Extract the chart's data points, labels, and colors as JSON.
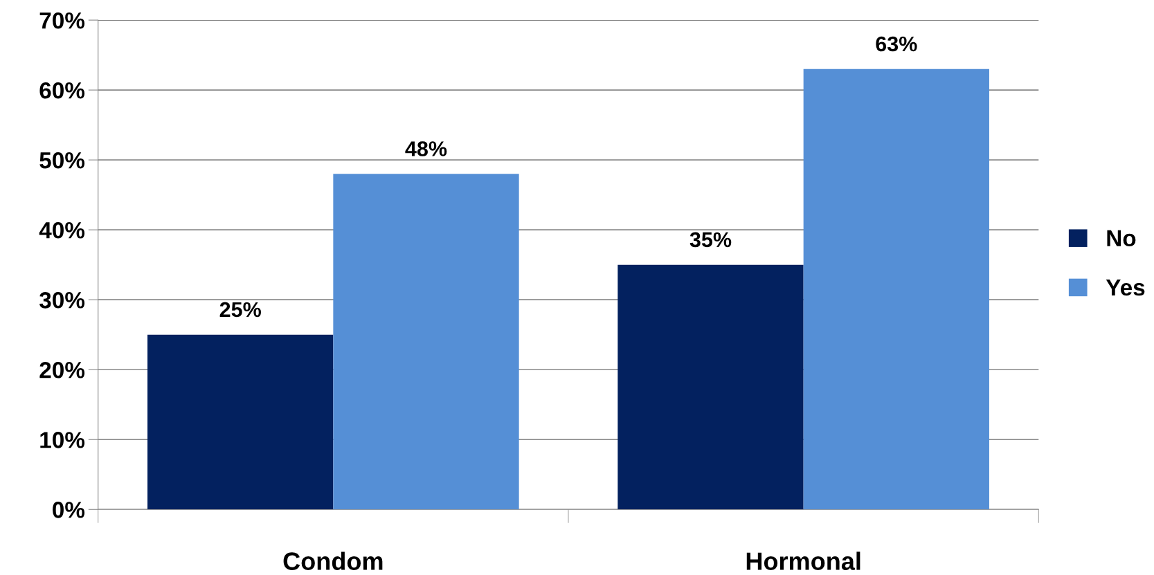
{
  "chart_data": {
    "type": "bar",
    "categories": [
      "Condom",
      "Hormonal"
    ],
    "series": [
      {
        "name": "No",
        "color": "#03215f",
        "values": [
          25,
          35
        ],
        "value_labels": [
          "25%",
          "35%"
        ]
      },
      {
        "name": "Yes",
        "color": "#558fd6",
        "values": [
          48,
          63
        ],
        "value_labels": [
          "48%",
          "63%"
        ]
      }
    ],
    "ylim": [
      0,
      70
    ],
    "yticks": [
      {
        "value": 0,
        "label": "0%"
      },
      {
        "value": 10,
        "label": "10%"
      },
      {
        "value": 20,
        "label": "20%"
      },
      {
        "value": 30,
        "label": "30%"
      },
      {
        "value": 40,
        "label": "40%"
      },
      {
        "value": 50,
        "label": "50%"
      },
      {
        "value": 60,
        "label": "60%"
      },
      {
        "value": 70,
        "label": "70%"
      }
    ],
    "grid": "y",
    "legend": "right"
  }
}
